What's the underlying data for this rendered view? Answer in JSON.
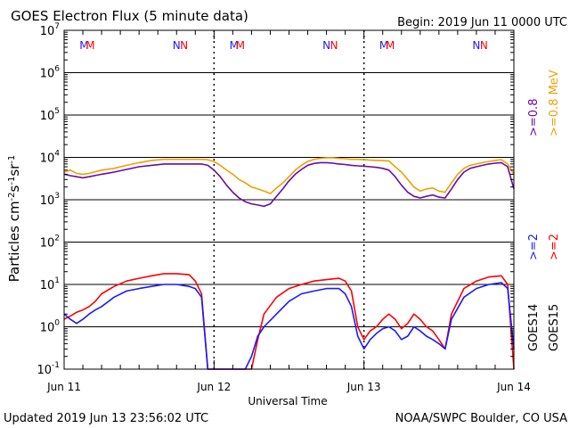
{
  "header": {
    "title": "GOES Electron Flux (5 minute data)",
    "begin": "Begin: 2019 Jun 11 0000 UTC"
  },
  "footer": {
    "updated": "Updated 2019 Jun 13 23:56:02 UTC",
    "source": "NOAA/SWPC Boulder, CO USA"
  },
  "colors": {
    "goes14_2mev": "#1a1aff",
    "goes15_2mev": "#ff0000",
    "goes14_08mev": "#6a0aa0",
    "goes15_08mev": "#f0a000",
    "marker_M": "#1a1aff",
    "marker_M2": "#ff0000",
    "marker_N": "#1a1aff",
    "marker_N2": "#ff0000"
  },
  "chart_data": {
    "type": "line",
    "title": "GOES Electron Flux (5 minute data)",
    "xlabel": "Universal Time",
    "ylabel_parts": {
      "base": "Particles cm",
      "e1": "-2",
      "s": "s",
      "e2": "-1",
      "sr": "sr",
      "e3": "-1"
    },
    "yscale": "log",
    "ylim": [
      0.1,
      10000000
    ],
    "xlim_hours": [
      0,
      72
    ],
    "x_tick_labels": [
      "Jun 11",
      "Jun 12",
      "Jun 13",
      "Jun 14"
    ],
    "y_tick_labels": [
      {
        "base": "10",
        "exp": "-1"
      },
      {
        "base": "10",
        "exp": "0"
      },
      {
        "base": "10",
        "exp": "1"
      },
      {
        "base": "10",
        "exp": "2"
      },
      {
        "base": "10",
        "exp": "3"
      },
      {
        "base": "10",
        "exp": "4"
      },
      {
        "base": "10",
        "exp": "5"
      },
      {
        "base": "10",
        "exp": "6"
      },
      {
        "base": "10",
        "exp": "7"
      }
    ],
    "threshold": 1000,
    "markers": [
      {
        "hour": 3.2,
        "label": "M",
        "color_key": "marker_M"
      },
      {
        "hour": 4.2,
        "label": "M",
        "color_key": "marker_M2"
      },
      {
        "hour": 18.0,
        "label": "N",
        "color_key": "marker_N"
      },
      {
        "hour": 19.2,
        "label": "N",
        "color_key": "marker_N2"
      },
      {
        "hour": 27.2,
        "label": "M",
        "color_key": "marker_M"
      },
      {
        "hour": 28.2,
        "label": "M",
        "color_key": "marker_M2"
      },
      {
        "hour": 42.0,
        "label": "N",
        "color_key": "marker_N"
      },
      {
        "hour": 43.2,
        "label": "N",
        "color_key": "marker_N2"
      },
      {
        "hour": 51.2,
        "label": "M",
        "color_key": "marker_M"
      },
      {
        "hour": 52.2,
        "label": "M",
        "color_key": "marker_M2"
      },
      {
        "hour": 66.0,
        "label": "N",
        "color_key": "marker_N"
      },
      {
        "hour": 67.2,
        "label": "N",
        "color_key": "marker_N2"
      }
    ],
    "right_legend": [
      {
        "text": ">=0.8 MeV",
        "color_key": "goes15_08mev"
      },
      {
        "text": ">=0.8",
        "color_key": "goes14_08mev"
      },
      {
        "text": ">=2",
        "color_key": "goes15_2mev"
      },
      {
        "text": ">=2",
        "color_key": "goes14_2mev"
      },
      {
        "text": "GOES15",
        "color_key": "text"
      },
      {
        "text": "GOES14",
        "color_key": "text"
      }
    ],
    "series": [
      {
        "name": "GOES15 >=0.8 MeV",
        "color_key": "goes15_08mev",
        "x": [
          0,
          1,
          2,
          3,
          4,
          6,
          8,
          10,
          12,
          14,
          16,
          18,
          20,
          22,
          23,
          24,
          25,
          26,
          27,
          28,
          29,
          30,
          31,
          32,
          33,
          34,
          35,
          36,
          37,
          38,
          39,
          40,
          41,
          42,
          43,
          44,
          45,
          46,
          47,
          48,
          49,
          50,
          51,
          52,
          53,
          54,
          55,
          56,
          57,
          58,
          59,
          60,
          61,
          62,
          63,
          64,
          65,
          66,
          67,
          68,
          69,
          70,
          71,
          72
        ],
        "y": [
          4500,
          5000,
          4200,
          4000,
          4200,
          5000,
          5500,
          6500,
          7500,
          8500,
          9000,
          9000,
          9000,
          9000,
          8800,
          8000,
          6500,
          5000,
          4000,
          3000,
          2500,
          2000,
          1800,
          1600,
          1400,
          1900,
          2500,
          3500,
          5000,
          6500,
          8000,
          9000,
          9500,
          9800,
          9800,
          9500,
          9300,
          9000,
          9000,
          8800,
          8600,
          8500,
          8400,
          8200,
          6000,
          4500,
          3000,
          2000,
          1600,
          1800,
          1900,
          1600,
          1500,
          2500,
          4000,
          5500,
          6500,
          7000,
          7500,
          8000,
          8500,
          8800,
          7000,
          4000
        ]
      },
      {
        "name": "GOES14 >=0.8 MeV",
        "color_key": "goes14_08mev",
        "x": [
          0,
          1,
          2,
          3,
          4,
          6,
          8,
          10,
          12,
          14,
          16,
          18,
          20,
          22,
          23,
          24,
          25,
          26,
          27,
          28,
          29,
          30,
          31,
          32,
          33,
          34,
          35,
          36,
          37,
          38,
          39,
          40,
          41,
          42,
          43,
          44,
          45,
          46,
          47,
          48,
          49,
          50,
          51,
          52,
          53,
          54,
          55,
          56,
          57,
          58,
          59,
          60,
          61,
          62,
          63,
          64,
          65,
          66,
          67,
          68,
          69,
          70,
          71,
          72
        ],
        "y": [
          4000,
          3700,
          3500,
          3300,
          3500,
          4000,
          4500,
          5200,
          6000,
          6500,
          7000,
          7000,
          7000,
          7000,
          6500,
          5000,
          3500,
          2200,
          1500,
          1100,
          900,
          800,
          750,
          700,
          800,
          1200,
          1800,
          2800,
          4000,
          5200,
          6500,
          7200,
          7500,
          7500,
          7300,
          7000,
          6800,
          6500,
          6300,
          6200,
          6000,
          5800,
          5500,
          5000,
          3500,
          2200,
          1500,
          1200,
          1100,
          1200,
          1300,
          1150,
          1100,
          1800,
          3000,
          4500,
          5500,
          6000,
          6500,
          7000,
          7300,
          7500,
          6000,
          1800
        ]
      },
      {
        "name": "GOES15 >=2 MeV",
        "color_key": "goes15_2mev",
        "x": [
          0,
          1,
          2,
          3,
          4,
          5,
          6,
          8,
          10,
          12,
          14,
          16,
          18,
          20,
          21,
          22,
          23,
          24,
          25,
          26,
          27,
          28,
          29,
          30,
          31,
          32,
          34,
          36,
          38,
          40,
          42,
          44,
          45,
          46,
          47,
          48,
          49,
          50,
          51,
          52,
          53,
          54,
          55,
          56,
          57,
          58,
          59,
          60,
          61,
          62,
          64,
          66,
          68,
          70,
          71,
          72
        ],
        "y": [
          1.5,
          1.8,
          2.2,
          2.5,
          3,
          4,
          6,
          9,
          12,
          14,
          16,
          18,
          18,
          17,
          12,
          6,
          0.1,
          0.1,
          0.1,
          0.1,
          0.1,
          0.1,
          0.1,
          0.1,
          0.5,
          2,
          5,
          8,
          10,
          12,
          13,
          14,
          12,
          7,
          1,
          0.5,
          0.8,
          1,
          1.5,
          2,
          1.5,
          0.9,
          1.2,
          2,
          1.5,
          1,
          0.8,
          0.5,
          0.3,
          2,
          8,
          12,
          15,
          16,
          10,
          0.1
        ]
      },
      {
        "name": "GOES14 >=2 MeV",
        "color_key": "goes14_2mev",
        "x": [
          0,
          1,
          2,
          3,
          4,
          5,
          6,
          8,
          10,
          12,
          14,
          16,
          18,
          20,
          21,
          22,
          23,
          24,
          25,
          26,
          27,
          28,
          29,
          30,
          31,
          32,
          34,
          36,
          38,
          40,
          42,
          44,
          45,
          46,
          47,
          48,
          49,
          50,
          51,
          52,
          53,
          54,
          55,
          56,
          57,
          58,
          59,
          60,
          61,
          62,
          64,
          66,
          68,
          70,
          71,
          72
        ],
        "y": [
          2,
          1.5,
          1.2,
          1.5,
          2,
          2.5,
          3,
          5,
          7,
          8,
          9,
          10,
          10,
          9,
          8,
          5,
          0.1,
          0.1,
          0.1,
          0.1,
          0.1,
          0.1,
          0.1,
          0.2,
          0.6,
          1,
          2,
          4,
          6,
          7,
          8,
          8,
          6,
          3,
          0.6,
          0.3,
          0.5,
          0.7,
          0.9,
          1,
          0.8,
          0.5,
          0.6,
          1,
          0.8,
          0.6,
          0.5,
          0.4,
          0.3,
          1.5,
          5,
          8,
          10,
          11,
          8,
          0.3
        ]
      }
    ]
  }
}
